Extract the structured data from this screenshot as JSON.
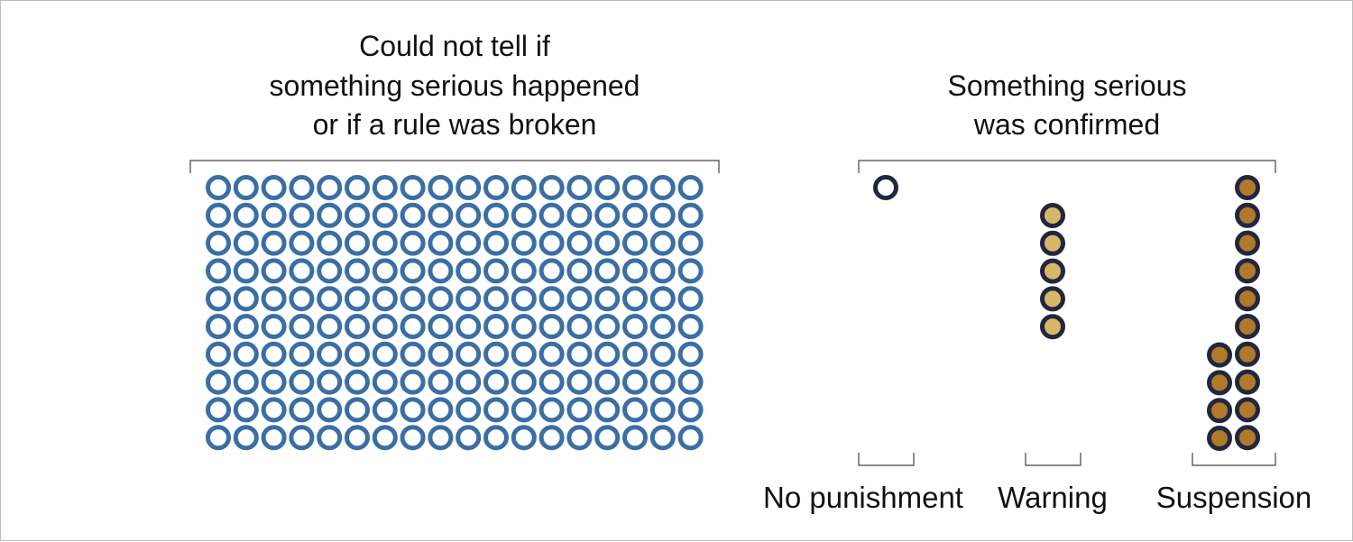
{
  "colors": {
    "unclear": "#3a6ea5",
    "outline": "#23263f",
    "no_punishment_fill": "#ffffff",
    "warning_fill": "#d7b867",
    "suspension_fill": "#b07a2a"
  },
  "chart_data": {
    "type": "unit-chart",
    "groups": [
      {
        "title_lines": [
          "Could not tell if",
          "something serious happened",
          "or if a rule was broken"
        ],
        "count": 180,
        "columns": 18,
        "rows": 10
      },
      {
        "title_lines": [
          "Something serious",
          "was confirmed"
        ],
        "categories": [
          {
            "label": "No punishment",
            "count": 1
          },
          {
            "label": "Warning",
            "count": 5
          },
          {
            "label": "Suspension",
            "count": 14
          }
        ]
      }
    ]
  }
}
